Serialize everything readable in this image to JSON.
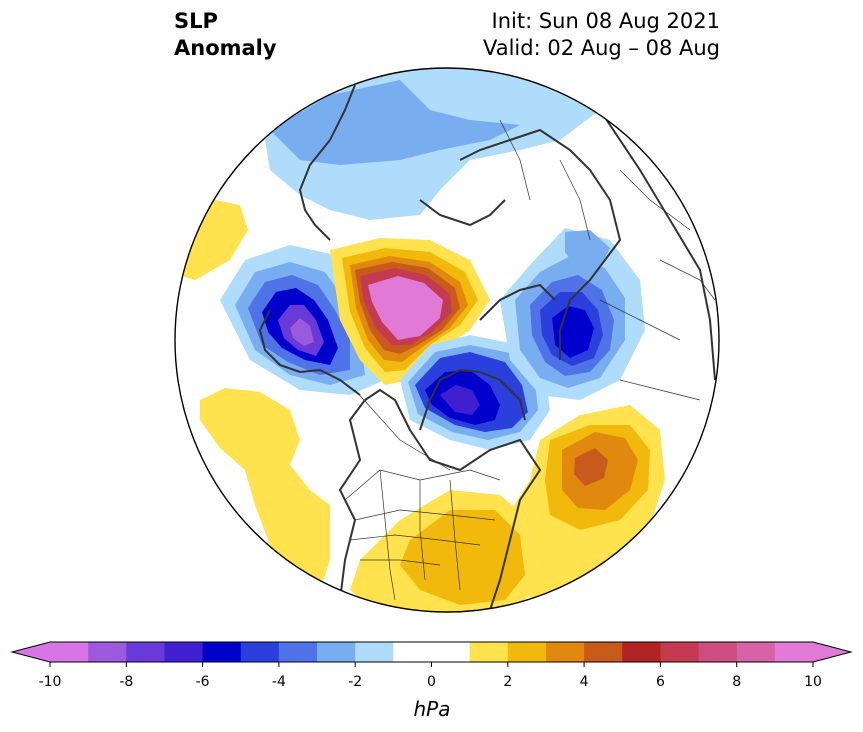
{
  "header": {
    "title_line1": "SLP",
    "title_line2": "Anomaly",
    "init": "Init: Sun 08 Aug 2021",
    "valid": "Valid: 02 Aug – 08 Aug"
  },
  "map": {
    "projection": "north-polar-stereographic",
    "variable": "sea level pressure anomaly",
    "features": [
      {
        "name": "aleutian-low",
        "value": -9,
        "region": "North Pacific / Bering Sea"
      },
      {
        "name": "hudson-bay-low",
        "value": -7,
        "region": "Hudson Bay / Canadian Archipelago"
      },
      {
        "name": "scandinavian-low",
        "value": -6,
        "region": "Scandinavia / Barents"
      },
      {
        "name": "beaufort-high",
        "value": 9,
        "region": "Beaufort Sea / Alaska"
      },
      {
        "name": "north-atlantic-high",
        "value": 4,
        "region": "North Atlantic"
      },
      {
        "name": "us-east-high",
        "value": 2,
        "region": "Eastern United States"
      }
    ]
  },
  "colorbar": {
    "unit": "hPa",
    "min": -10,
    "max": 10,
    "extend": "both",
    "tick_labels": [
      "-10",
      "-8",
      "-6",
      "-4",
      "-2",
      "0",
      "2",
      "4",
      "6",
      "8",
      "10"
    ],
    "colors": [
      "#d875e6",
      "#9b59dc",
      "#6a3ad8",
      "#3f1fd0",
      "#0000cc",
      "#2a3fdc",
      "#4f72e6",
      "#78adf0",
      "#aedcfa",
      "#ffffff",
      "#ffffff",
      "#ffe24d",
      "#f2b90d",
      "#e0890e",
      "#c85a1c",
      "#b02424",
      "#c43a50",
      "#cc4d7f",
      "#d662a8",
      "#e17ad6"
    ],
    "under_color": "#d875e6",
    "over_color": "#e17ad6"
  }
}
